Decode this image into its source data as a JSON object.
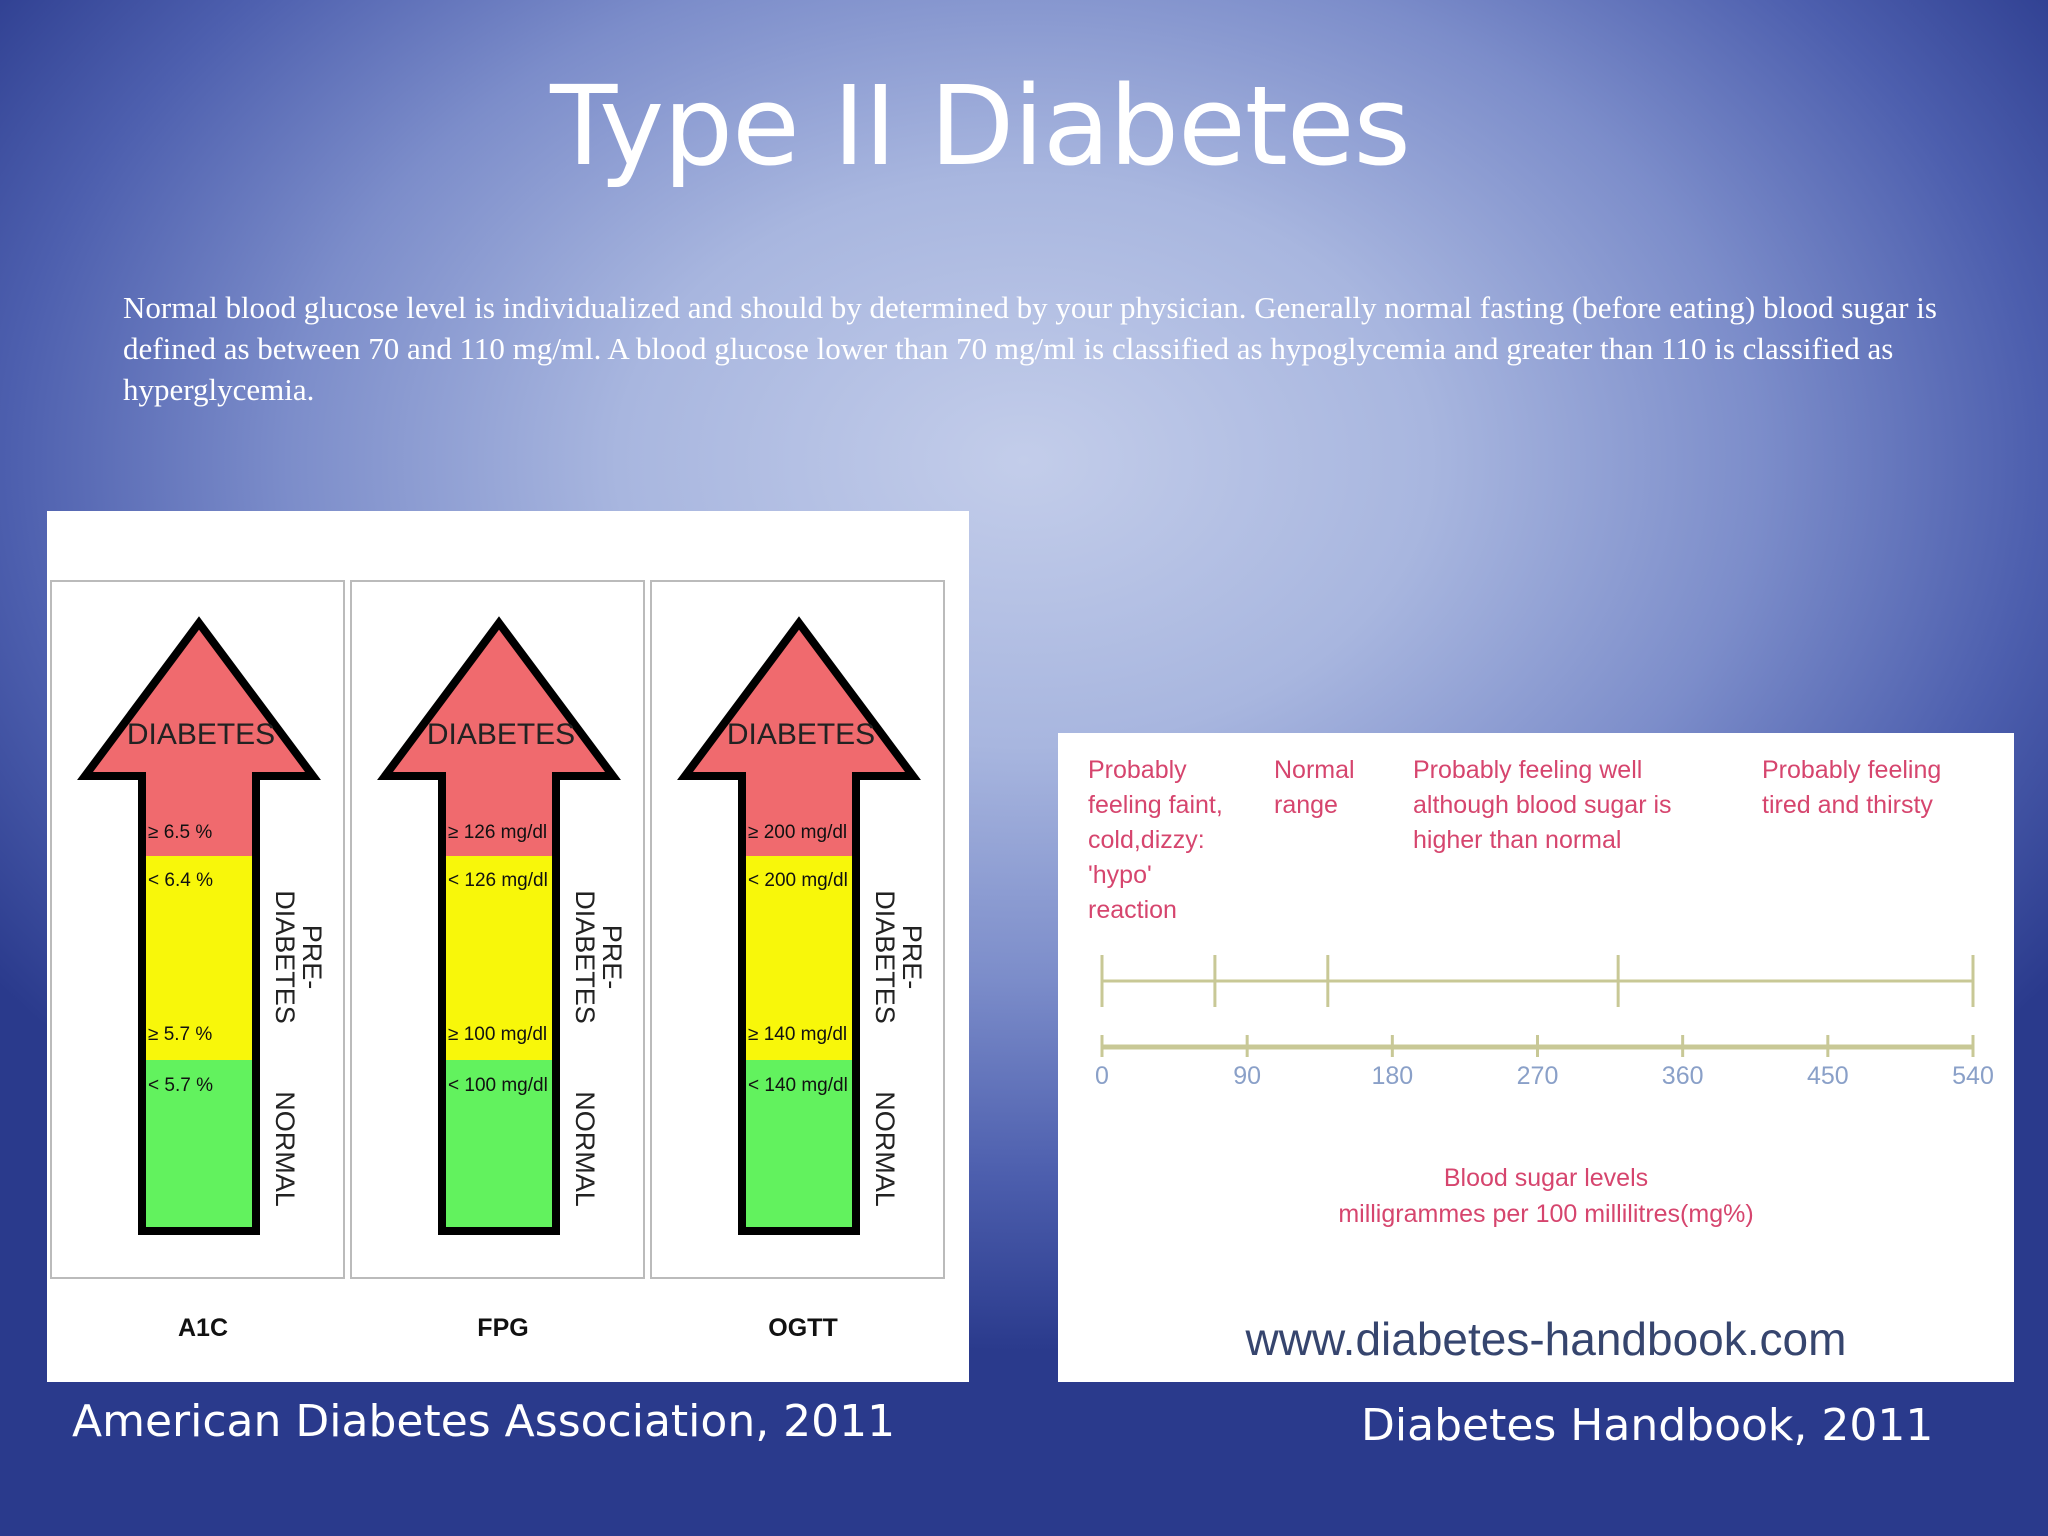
{
  "slide": {
    "title": "Type II Diabetes",
    "intro": "Normal blood glucose level is individualized and should by determined by your physician. Generally normal fasting (before eating) blood sugar is defined as between 70 and 110 mg/ml. A blood glucose lower than 70 mg/ml is classified as hypoglycemia and greater than 110 is classified as hyperglycemia."
  },
  "ada_figure": {
    "colors": {
      "diabetes": "#f06a6e",
      "prediabetes": "#f8f70a",
      "normal": "#62f25e"
    },
    "diabetes_label": "DIABETES",
    "prediabetes_label_1": "PRE-",
    "prediabetes_label_2": "DIABETES",
    "normal_label": "NORMAL",
    "tests": [
      {
        "name": "A1C",
        "diabetes_threshold": "≥ 6.5 %",
        "pre_upper": "< 6.4 %",
        "pre_lower": "≥ 5.7 %",
        "normal_upper": "< 5.7 %"
      },
      {
        "name": "FPG",
        "diabetes_threshold": "≥ 126 mg/dl",
        "pre_upper": "< 126 mg/dl",
        "pre_lower": "≥ 100 mg/dl",
        "normal_upper": "< 100 mg/dl"
      },
      {
        "name": "OGTT",
        "diabetes_threshold": "≥ 200 mg/dl",
        "pre_upper": "< 200 mg/dl",
        "pre_lower": "≥ 140 mg/dl",
        "normal_upper": "< 140 mg/dl"
      }
    ]
  },
  "handbook_figure": {
    "zones": [
      {
        "lines": [
          "Probably",
          "feeling faint,",
          "cold,dizzy:",
          "'hypo'",
          "reaction"
        ]
      },
      {
        "lines": [
          "Normal",
          "range"
        ]
      },
      {
        "lines": [
          "Probably feeling well",
          "although blood sugar is",
          "higher than normal"
        ]
      },
      {
        "lines": [
          "Probably feeling",
          "tired and thirsty"
        ]
      }
    ],
    "zone_boundaries": [
      0,
      70,
      140,
      320,
      540
    ],
    "scale_ticks": [
      "0",
      "90",
      "180",
      "270",
      "360",
      "450",
      "540"
    ],
    "scale_tick_values": [
      0,
      90,
      180,
      270,
      360,
      450,
      540
    ],
    "axis_title_1": "Blood sugar levels",
    "axis_title_2": "milligrammes per 100 millilitres(mg%)",
    "website": "www.diabetes-handbook.com",
    "colors": {
      "text": "#d6456e",
      "axis": "#c8c896",
      "tick_labels": "#8aa0c8",
      "website": "#36456e"
    }
  },
  "captions": {
    "left": "American Diabetes Association, 2011",
    "right": "Diabetes Handbook, 2011"
  }
}
